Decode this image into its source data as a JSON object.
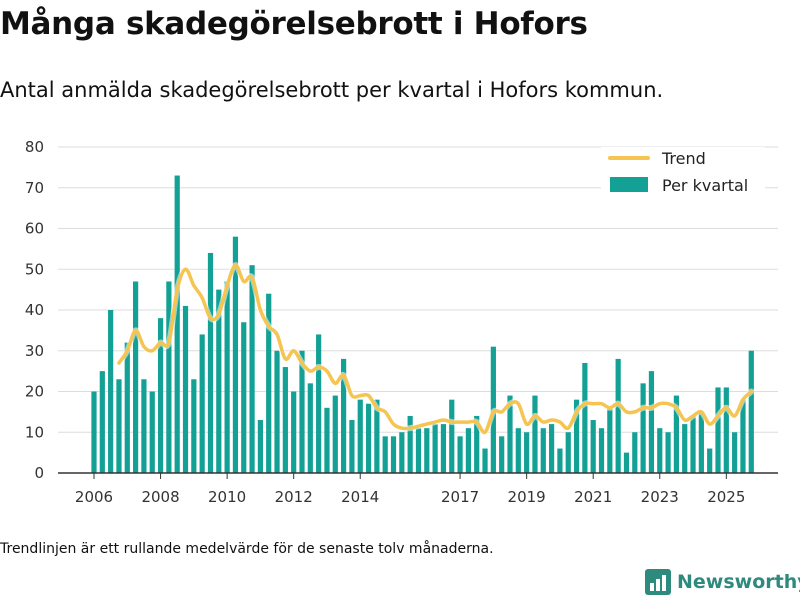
{
  "header": {
    "title": "Många skadegörelsebrott i Hofors",
    "subtitle": "Antal anmälda skadegörelsebrott per kvartal i Hofors kommun."
  },
  "footer": {
    "note": "Trendlinjen är ett rullande medelvärde för de senaste tolv månaderna.",
    "brand": "Newsworthy",
    "brand_icon": "bar-chart-logo-icon"
  },
  "colors": {
    "bar": "#13a196",
    "trend": "#f5c451",
    "grid": "#dddddd",
    "axis": "#333333",
    "brand": "#2f8a7e"
  },
  "chart_data": {
    "type": "bar",
    "title": "Antal anmälda skadegörelsebrott per kvartal i Hofors kommun",
    "xlabel": "",
    "ylabel": "",
    "ylim": [
      0,
      80
    ],
    "yticks": [
      0,
      10,
      20,
      30,
      40,
      50,
      60,
      70,
      80
    ],
    "xticks": [
      {
        "label": "2006",
        "index": 0
      },
      {
        "label": "2008",
        "index": 8
      },
      {
        "label": "2010",
        "index": 16
      },
      {
        "label": "2012",
        "index": 24
      },
      {
        "label": "2014",
        "index": 32
      },
      {
        "label": "2017",
        "index": 44
      },
      {
        "label": "2019",
        "index": 52
      },
      {
        "label": "2021",
        "index": 60
      },
      {
        "label": "2023",
        "index": 68
      },
      {
        "label": "2025",
        "index": 76
      }
    ],
    "legend": [
      {
        "label": "Trend",
        "kind": "line"
      },
      {
        "label": "Per kvartal",
        "kind": "bar"
      }
    ],
    "legend_position": "top-right",
    "series": [
      {
        "name": "Per kvartal",
        "type": "bar",
        "values": [
          20,
          25,
          40,
          23,
          32,
          47,
          23,
          20,
          38,
          47,
          73,
          41,
          23,
          34,
          54,
          45,
          47,
          58,
          37,
          51,
          13,
          44,
          30,
          26,
          20,
          30,
          22,
          34,
          16,
          19,
          28,
          13,
          18,
          17,
          18,
          9,
          9,
          10,
          14,
          11,
          11,
          12,
          12,
          18,
          9,
          11,
          14,
          6,
          31,
          9,
          19,
          11,
          10,
          19,
          11,
          12,
          6,
          10,
          18,
          27,
          13,
          11,
          16,
          28,
          5,
          10,
          22,
          25,
          11,
          10,
          19,
          12,
          14,
          15,
          6,
          21,
          21,
          10,
          18,
          30
        ]
      },
      {
        "name": "Trend",
        "type": "line",
        "values": [
          null,
          null,
          null,
          27,
          30,
          35,
          31,
          30,
          32,
          32,
          45,
          50,
          46,
          43,
          38,
          39,
          46,
          51,
          47,
          48,
          40,
          36,
          34,
          28,
          30,
          27,
          25,
          26,
          25,
          22,
          24,
          19,
          19,
          19,
          16,
          15,
          12,
          11,
          11,
          11.5,
          12,
          12.5,
          13,
          12.5,
          12.5,
          12.5,
          12.5,
          10,
          15,
          15,
          17,
          17,
          12,
          14,
          12.5,
          13,
          12.5,
          11,
          15,
          17,
          17,
          17,
          16,
          17,
          15,
          15,
          16,
          16,
          17,
          17,
          16,
          13,
          14,
          15,
          12,
          14,
          16,
          14,
          18,
          20
        ]
      }
    ]
  }
}
